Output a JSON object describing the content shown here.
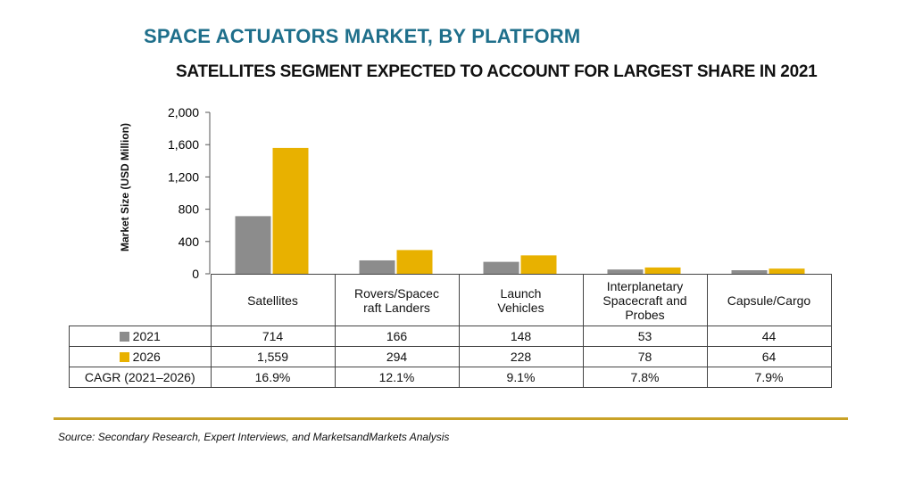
{
  "title": "SPACE ACTUATORS MARKET, BY PLATFORM",
  "subtitle": "SATELLITES SEGMENT EXPECTED TO ACCOUNT FOR LARGEST SHARE IN 2021",
  "source": "Source: Secondary Research, Expert Interviews, and MarketsandMarkets Analysis",
  "colors": {
    "s2021": "#8c8c8c",
    "s2026": "#e8b100",
    "title": "#1f6f8b",
    "rule": "#c9a227"
  },
  "chart_data": {
    "type": "bar",
    "ylabel": "Market Size (USD Million)",
    "ylim": [
      0,
      2000
    ],
    "yticks": [
      "0",
      "400",
      "800",
      "1,200",
      "1,600",
      "2,000"
    ],
    "ytick_values": [
      0,
      400,
      800,
      1200,
      1600,
      2000
    ],
    "categories": [
      "Satellites",
      "Rovers/Spacecraft Landers",
      "Launch Vehicles",
      "Interplanetary Spacecraft and Probes",
      "Capsule/Cargo"
    ],
    "category_labels": [
      [
        "Satellites"
      ],
      [
        "Rovers/Spacec",
        "raft Landers"
      ],
      [
        "Launch",
        "Vehicles"
      ],
      [
        "Interplanetary",
        "Spacecraft and",
        "Probes"
      ],
      [
        "Capsule/Cargo"
      ]
    ],
    "series": [
      {
        "name": "2021",
        "values": [
          714,
          166,
          148,
          53,
          44
        ],
        "labels": [
          "714",
          "166",
          "148",
          "53",
          "44"
        ]
      },
      {
        "name": "2026",
        "values": [
          1559,
          294,
          228,
          78,
          64
        ],
        "labels": [
          "1,559",
          "294",
          "228",
          "78",
          "64"
        ]
      }
    ],
    "cagr_label": "CAGR (2021–2026)",
    "cagr": [
      "16.9%",
      "12.1%",
      "9.1%",
      "7.8%",
      "7.9%"
    ],
    "grid": false
  }
}
